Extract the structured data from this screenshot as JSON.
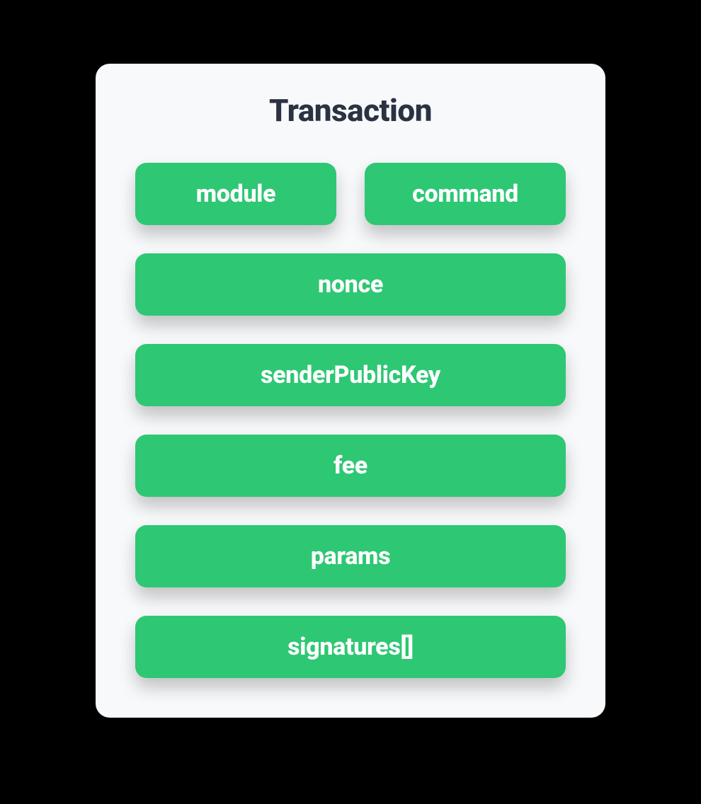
{
  "diagram": {
    "type": "infographic",
    "title": "Transaction",
    "background_color": "#000000",
    "card_background": "#f8f9fb",
    "card_border_radius": 20,
    "title_color": "#2b3342",
    "title_fontsize": 44,
    "title_fontweight": 800,
    "pill_background": "#2ec774",
    "pill_text_color": "#ffffff",
    "pill_fontsize": 34,
    "pill_fontweight": 800,
    "pill_border_radius": 16,
    "shadow_color": "rgba(0,0,0,0.22)",
    "rows": {
      "row1_left": "module",
      "row1_right": "command",
      "row2": "nonce",
      "row3": "senderPublicKey",
      "row4": "fee",
      "row5": "params",
      "row6": "signatures[]"
    }
  }
}
